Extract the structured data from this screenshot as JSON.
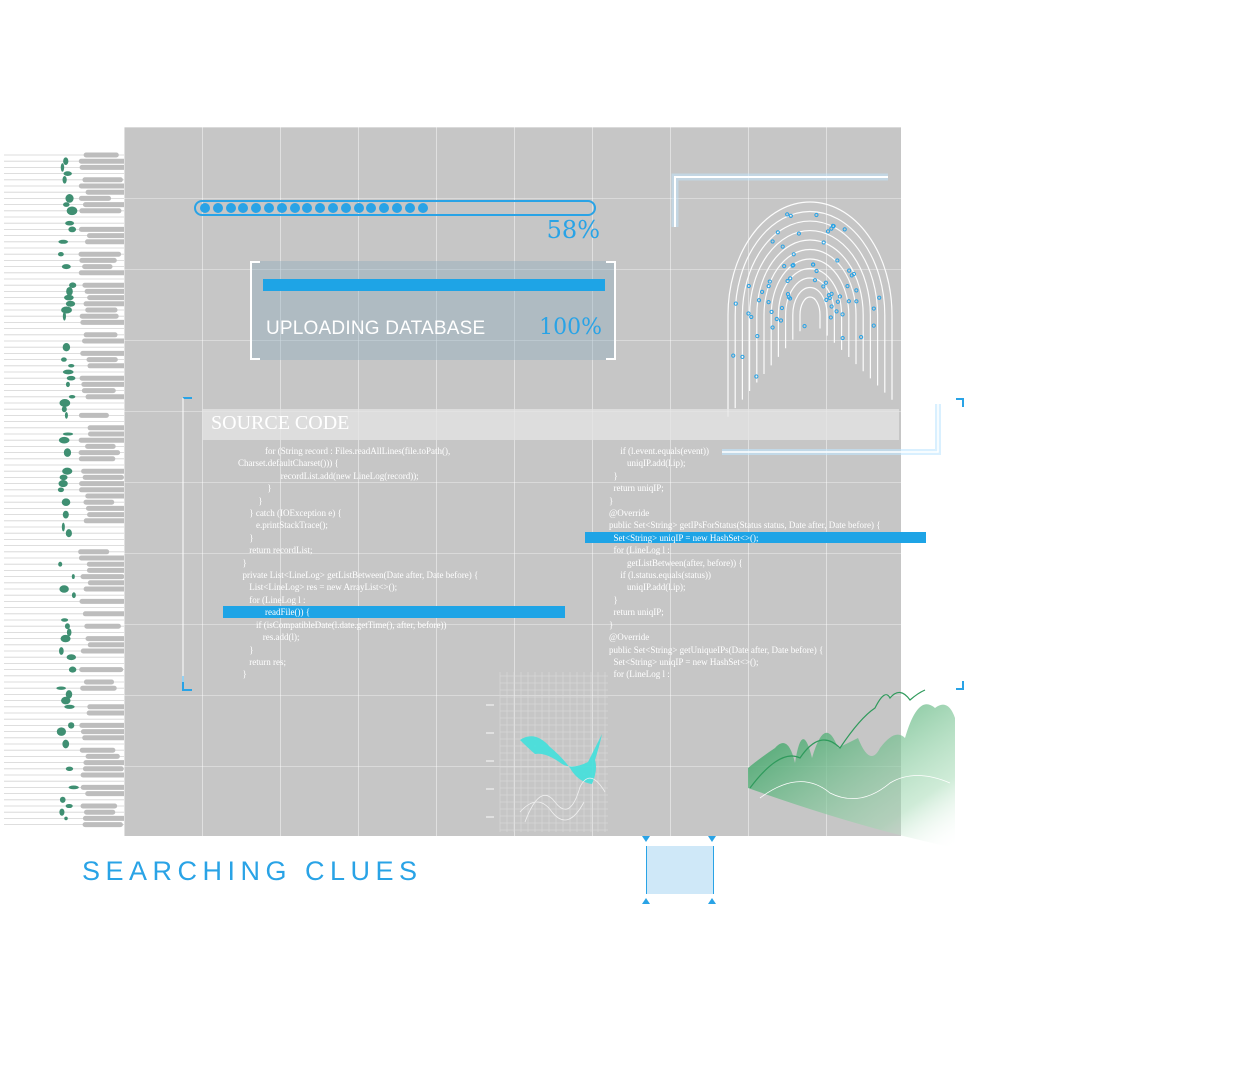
{
  "progress": {
    "value_percent": 58,
    "label": "58%",
    "dot_count": 18
  },
  "upload": {
    "label": "UPLOADING DATABASE",
    "percent_label": "100%",
    "value_percent": 100
  },
  "source": {
    "title": "SOURCE CODE",
    "left_lines": [
      "            for (String record : Files.readAllLines(file.toPath(),",
      "Charset.defaultCharset())) {",
      "                   recordList.add(new LineLog(record));",
      "             }",
      "         }",
      "     } catch (IOException e) {",
      "        e.printStackTrace();",
      "     }",
      "     return recordList;",
      "  }",
      "  private List<LineLog> getListBetween(Date after, Date before) {",
      "     List<LineLog> res = new ArrayList<>();",
      "     for (LineLog l :",
      "            readFile()) {",
      "        if (isCompatibleDate(l.date.getTime(), after, before))",
      "           res.add(l);",
      "     }",
      "     return res;",
      "  }"
    ],
    "right_lines": [
      "     if (l.event.equals(event))",
      "        uniqIP.add(l.ip);",
      "  }",
      "  return uniqIP;",
      "}",
      "@Override",
      "public Set<String> getIPsForStatus(Status status, Date after, Date before) {",
      "  Set<String> uniqIP = new HashSet<>();",
      "  for (LineLog l :",
      "        getListBetween(after, before)) {",
      "     if (l.status.equals(status))",
      "        uniqIP.add(l.ip);",
      "  }",
      "  return uniqIP;",
      "}",
      "@Override",
      "public Set<String> getUniqueIPs(Date after, Date before) {",
      "  Set<String> uniqIP = new HashSet<>();",
      "  for (LineLog l :"
    ]
  },
  "footer": {
    "label": "SEARCHING CLUES"
  },
  "colors": {
    "accent": "#29a3e6",
    "panel": "#c6c6c6",
    "green": "#2f9a5c",
    "teal": "#3fd8d8"
  }
}
